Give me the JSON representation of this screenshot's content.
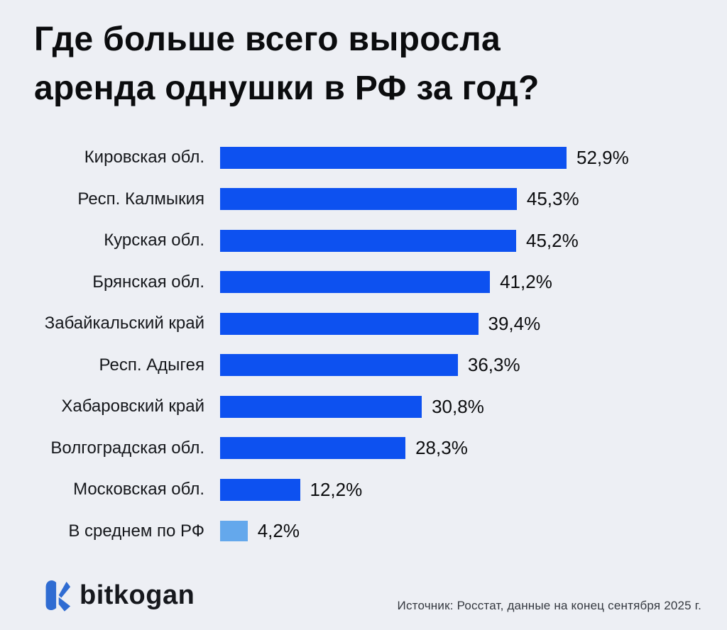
{
  "title": {
    "line1": "Где больше всего выросла",
    "line2": "аренда однушки в РФ за год?"
  },
  "colors": {
    "background": "#edeff4",
    "bar_primary": "#0d51f0",
    "bar_highlight": "#64a8ec",
    "logo_blue": "#2f6cd2",
    "text_dark": "#0c0d0f"
  },
  "chart_data": {
    "type": "bar",
    "orientation": "horizontal",
    "unit": "%",
    "title": "Где больше всего выросла аренда однушки в РФ за год?",
    "xlim": [
      0,
      52.9
    ],
    "grid": false,
    "legend": false,
    "categories": [
      "Кировская обл.",
      "Респ. Калмыкия",
      "Курская обл.",
      "Брянская обл.",
      "Забайкальский край",
      "Респ. Адыгея",
      "Хабаровский край",
      "Волгоградская обл.",
      "Московская обл.",
      "В среднем по РФ"
    ],
    "values": [
      52.9,
      45.3,
      45.2,
      41.2,
      39.4,
      36.3,
      30.8,
      28.3,
      12.2,
      4.2
    ],
    "items": [
      {
        "label": "Кировская обл.",
        "value": 52.9,
        "display": "52,9%",
        "highlight": false
      },
      {
        "label": "Респ. Калмыкия",
        "value": 45.3,
        "display": "45,3%",
        "highlight": false
      },
      {
        "label": "Курская обл.",
        "value": 45.2,
        "display": "45,2%",
        "highlight": false
      },
      {
        "label": "Брянская обл.",
        "value": 41.2,
        "display": "41,2%",
        "highlight": false
      },
      {
        "label": "Забайкальский край",
        "value": 39.4,
        "display": "39,4%",
        "highlight": false
      },
      {
        "label": "Респ. Адыгея",
        "value": 36.3,
        "display": "36,3%",
        "highlight": false
      },
      {
        "label": "Хабаровский край",
        "value": 30.8,
        "display": "30,8%",
        "highlight": false
      },
      {
        "label": "Волгоградская обл.",
        "value": 28.3,
        "display": "28,3%",
        "highlight": false
      },
      {
        "label": "Московская обл.",
        "value": 12.2,
        "display": "12,2%",
        "highlight": false
      },
      {
        "label": "В среднем по РФ",
        "value": 4.2,
        "display": "4,2%",
        "highlight": true
      }
    ]
  },
  "footer": {
    "brand": "bitkogan",
    "source": "Источник: Росстат, данные на конец сентября 2025 г."
  }
}
